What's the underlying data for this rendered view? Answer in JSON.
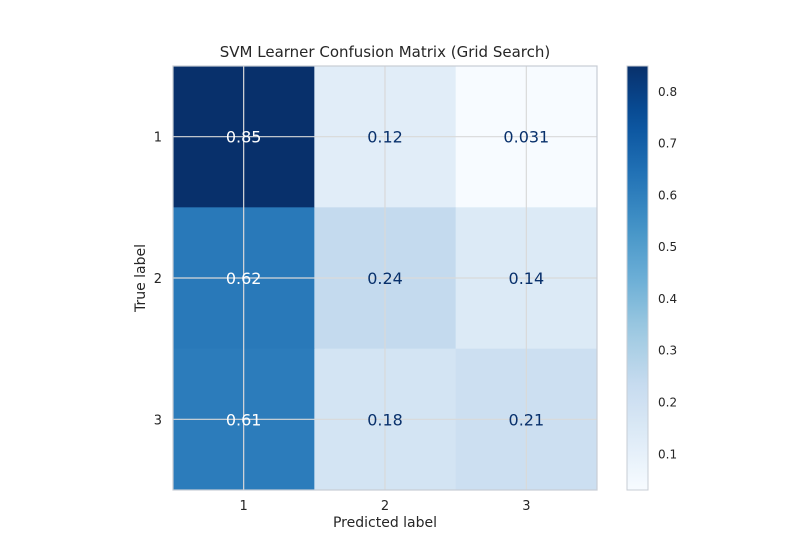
{
  "chart_data": {
    "type": "heatmap",
    "title": "SVM Learner Confusion Matrix (Grid Search)",
    "xlabel": "Predicted label",
    "ylabel": "True label",
    "x_categories": [
      "1",
      "2",
      "3"
    ],
    "y_categories": [
      "1",
      "2",
      "3"
    ],
    "values": [
      [
        0.85,
        0.12,
        0.031
      ],
      [
        0.62,
        0.24,
        0.14
      ],
      [
        0.61,
        0.18,
        0.21
      ]
    ],
    "cell_labels": [
      [
        "0.85",
        "0.12",
        "0.031"
      ],
      [
        "0.62",
        "0.24",
        "0.14"
      ],
      [
        "0.61",
        "0.18",
        "0.21"
      ]
    ],
    "colormap": "Blues",
    "colorbar": {
      "range": [
        0.031,
        0.85
      ],
      "ticks": [
        0.1,
        0.2,
        0.3,
        0.4,
        0.5,
        0.6,
        0.7,
        0.8
      ],
      "tick_labels": [
        "0.1",
        "0.2",
        "0.3",
        "0.4",
        "0.5",
        "0.6",
        "0.7",
        "0.8"
      ]
    },
    "grid": true,
    "colors": {
      "dark_text": "#08306b",
      "light_text": "#ffffff",
      "grid": "#d9d9d9",
      "frame": "#c7cdd4"
    }
  }
}
